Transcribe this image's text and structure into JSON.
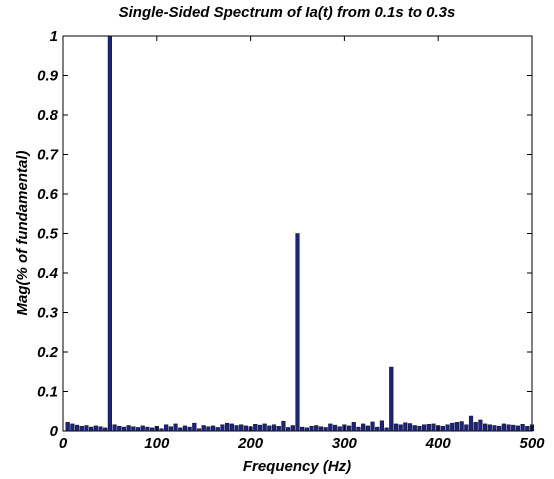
{
  "chart_data": {
    "type": "bar",
    "title": "Single-Sided Spectrum of Ia(t) from 0.1s to 0.3s",
    "xlabel": "Frequency (Hz)",
    "ylabel": "Mag(% of fundamental)",
    "xlim": [
      0,
      500
    ],
    "ylim": [
      0,
      1
    ],
    "x_ticks": [
      "0",
      "100",
      "200",
      "300",
      "400",
      "500"
    ],
    "y_ticks": [
      "0",
      "0.1",
      "0.2",
      "0.3",
      "0.4",
      "0.5",
      "0.6",
      "0.7",
      "0.8",
      "0.9",
      "1"
    ],
    "bin_width_hz": 5,
    "grid": false,
    "bar_color": "#1a237e",
    "x": [
      5,
      10,
      15,
      20,
      25,
      30,
      35,
      40,
      45,
      50,
      55,
      60,
      65,
      70,
      75,
      80,
      85,
      90,
      95,
      100,
      105,
      110,
      115,
      120,
      125,
      130,
      135,
      140,
      145,
      150,
      155,
      160,
      165,
      170,
      175,
      180,
      185,
      190,
      195,
      200,
      205,
      210,
      215,
      220,
      225,
      230,
      235,
      240,
      245,
      250,
      255,
      260,
      265,
      270,
      275,
      280,
      285,
      290,
      295,
      300,
      305,
      310,
      315,
      320,
      325,
      330,
      335,
      340,
      345,
      350,
      355,
      360,
      365,
      370,
      375,
      380,
      385,
      390,
      395,
      400,
      405,
      410,
      415,
      420,
      425,
      430,
      435,
      440,
      445,
      450,
      455,
      460,
      465,
      470,
      475,
      480,
      485,
      490,
      495,
      500
    ],
    "values": [
      0.022,
      0.018,
      0.015,
      0.012,
      0.014,
      0.01,
      0.013,
      0.011,
      0.008,
      1.0,
      0.016,
      0.012,
      0.01,
      0.014,
      0.011,
      0.009,
      0.013,
      0.01,
      0.008,
      0.012,
      0.006,
      0.016,
      0.011,
      0.018,
      0.008,
      0.013,
      0.01,
      0.02,
      0.006,
      0.014,
      0.011,
      0.013,
      0.009,
      0.016,
      0.02,
      0.018,
      0.014,
      0.016,
      0.013,
      0.011,
      0.017,
      0.015,
      0.018,
      0.013,
      0.016,
      0.012,
      0.025,
      0.009,
      0.014,
      0.5,
      0.01,
      0.008,
      0.012,
      0.014,
      0.011,
      0.009,
      0.018,
      0.015,
      0.011,
      0.016,
      0.013,
      0.022,
      0.01,
      0.018,
      0.013,
      0.023,
      0.01,
      0.026,
      0.008,
      0.162,
      0.018,
      0.016,
      0.021,
      0.019,
      0.014,
      0.012,
      0.016,
      0.017,
      0.018,
      0.014,
      0.012,
      0.016,
      0.02,
      0.022,
      0.024,
      0.016,
      0.038,
      0.022,
      0.028,
      0.018,
      0.016,
      0.014,
      0.012,
      0.018,
      0.016,
      0.015,
      0.013,
      0.017,
      0.012,
      0.016
    ]
  }
}
